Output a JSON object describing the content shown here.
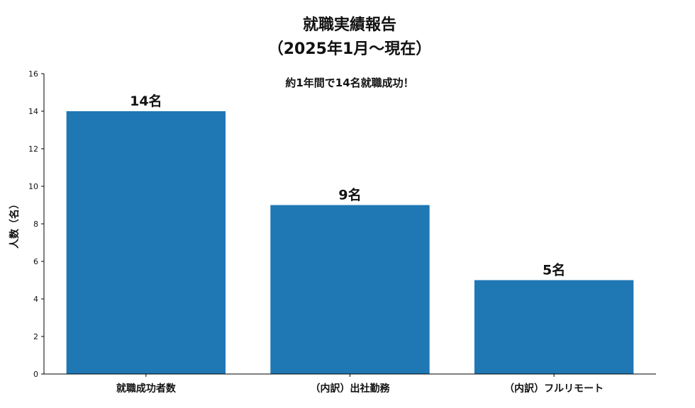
{
  "chart_data": {
    "type": "bar",
    "title_line1": "就職実績報告",
    "title_line2": "（2025年1月〜現在）",
    "annotation": "約1年間で14名就職成功！",
    "xlabel": "",
    "ylabel": "人数（名）",
    "ylim": [
      0,
      16
    ],
    "yticks": [
      0,
      2,
      4,
      6,
      8,
      10,
      12,
      14,
      16
    ],
    "categories": [
      "就職成功者数",
      "（内訳）出社勤務",
      "（内訳）フルリモート"
    ],
    "values": [
      14,
      9,
      5
    ],
    "data_labels": [
      "14名",
      "9名",
      "5名"
    ],
    "bar_color": "#1f77b4",
    "grid": false
  }
}
